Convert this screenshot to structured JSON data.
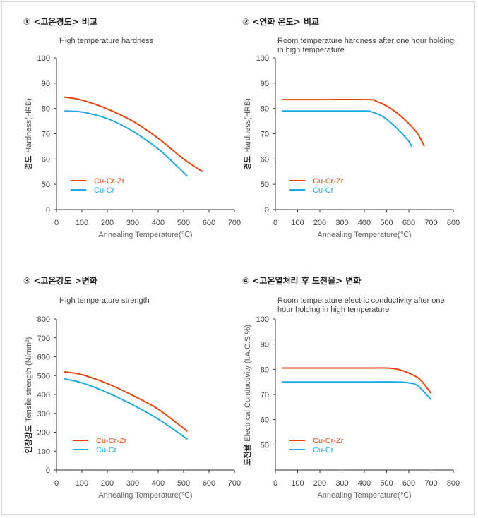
{
  "colors": {
    "cu_cr_zr": "#e8450e",
    "cu_cr": "#1ea9e6",
    "axis": "#333333",
    "frame": "#d6d6d6"
  },
  "panels": [
    {
      "heading": "① <고온경도> 비교",
      "subtitle": "High temperature hardness"
    },
    {
      "heading": "② <연화 온도> 비교",
      "subtitle": "Room temperature hardness after one hour holding in high temperature"
    },
    {
      "heading": "③ <고온강도 >변화",
      "subtitle": "High temperature strength"
    },
    {
      "heading": "④ <고온열처리 후 도전율> 변화",
      "subtitle": "Room temperature electric conductivity after one hour holding in high temperature"
    }
  ],
  "chart_data": [
    {
      "type": "line",
      "title": "High temperature hardness",
      "xlabel": "Annealing Temperature(℃)",
      "ylabel_ko": "경도",
      "ylabel": "Hardness(HRB)",
      "xlim": [
        0,
        700
      ],
      "ylim": [
        0,
        100
      ],
      "xticks": [
        "0",
        "100",
        "200",
        "300",
        "400",
        "500",
        "600",
        "700"
      ],
      "yticks": [
        "0",
        "50",
        "60",
        "70",
        "80",
        "90",
        "100"
      ],
      "series": [
        {
          "name": "Cu-Cr-Zr",
          "x": [
            30,
            100,
            200,
            300,
            400,
            500,
            575
          ],
          "y": [
            84.5,
            83.3,
            79.8,
            75,
            68.2,
            60,
            55
          ]
        },
        {
          "name": "Cu-Cr",
          "x": [
            30,
            100,
            200,
            300,
            400,
            450,
            515
          ],
          "y": [
            79,
            78.6,
            76,
            71,
            64,
            59.5,
            53.2
          ]
        }
      ]
    },
    {
      "type": "line",
      "title": "Room temperature hardness after one hour holding in high temperature",
      "xlabel": "Annealing Temperature(℃)",
      "ylabel_ko": "경도",
      "ylabel": "Hardness(HRB)",
      "xlim": [
        0,
        800
      ],
      "ylim": [
        0,
        100
      ],
      "xticks": [
        "0",
        "100",
        "200",
        "300",
        "400",
        "500",
        "600",
        "700",
        "800"
      ],
      "yticks": [
        "0",
        "50",
        "60",
        "70",
        "80",
        "90",
        "100"
      ],
      "series": [
        {
          "name": "Cu-Cr-Zr",
          "x": [
            30,
            200,
            420,
            450,
            500,
            550,
            600,
            640,
            670
          ],
          "y": [
            83.5,
            83.5,
            83.5,
            83,
            81,
            78,
            74,
            70,
            65
          ]
        },
        {
          "name": "Cu-Cr",
          "x": [
            30,
            200,
            400,
            430,
            480,
            530,
            570,
            600,
            615
          ],
          "y": [
            79,
            79,
            79,
            78.7,
            77,
            73.5,
            70,
            67,
            64.5
          ]
        }
      ]
    },
    {
      "type": "line",
      "title": "High temperature strength",
      "xlabel": "Annealing Temperature(℃)",
      "ylabel_ko": "인장강도",
      "ylabel": "Tensile strength (N/mm²)",
      "xlim": [
        0,
        700
      ],
      "ylim": [
        0,
        800
      ],
      "xticks": [
        "0",
        "100",
        "200",
        "300",
        "400",
        "500",
        "600",
        "700"
      ],
      "yticks": [
        "0",
        "100",
        "200",
        "300",
        "400",
        "500",
        "600",
        "700",
        "800"
      ],
      "series": [
        {
          "name": "Cu-Cr-Zr",
          "x": [
            30,
            100,
            200,
            300,
            400,
            515
          ],
          "y": [
            520,
            505,
            458,
            395,
            322,
            205
          ]
        },
        {
          "name": "Cu-Cr",
          "x": [
            30,
            100,
            200,
            300,
            400,
            515
          ],
          "y": [
            483,
            462,
            410,
            345,
            270,
            163
          ]
        }
      ]
    },
    {
      "type": "line",
      "title": "Room temperature electric conductivity after one hour holding in high temperature",
      "xlabel": "Annealing Temperature(℃)",
      "ylabel_ko": "도전율",
      "ylabel": "Electrical Conductivity (I.A.C.S %)",
      "xlim": [
        0,
        800
      ],
      "ylim": [
        40,
        100
      ],
      "xticks": [
        "0",
        "100",
        "200",
        "300",
        "400",
        "500",
        "600",
        "700",
        "800"
      ],
      "yticks": [
        "50",
        "60",
        "70",
        "80",
        "90",
        "100"
      ],
      "series": [
        {
          "name": "Cu-Cr-Zr",
          "x": [
            30,
            200,
            400,
            500,
            550,
            600,
            650,
            700
          ],
          "y": [
            80.5,
            80.5,
            80.5,
            80.5,
            80,
            78.5,
            76,
            70.5
          ]
        },
        {
          "name": "Cu-Cr",
          "x": [
            30,
            200,
            400,
            550,
            600,
            640,
            700
          ],
          "y": [
            75,
            75,
            75,
            75,
            74.6,
            73.5,
            68
          ]
        }
      ]
    }
  ]
}
